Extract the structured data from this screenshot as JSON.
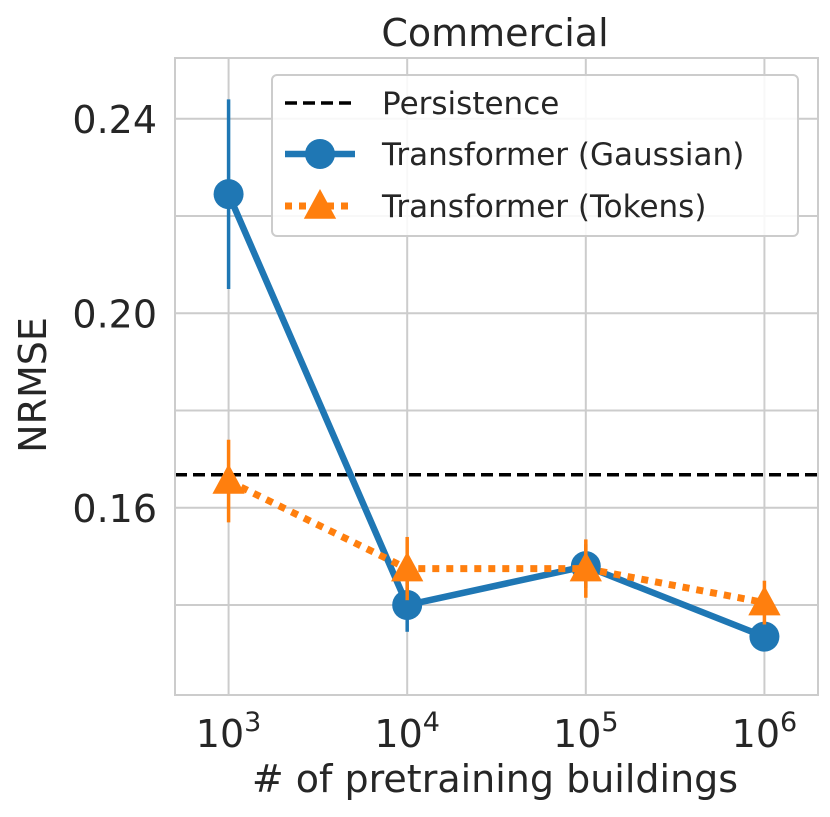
{
  "chart_data": {
    "type": "line",
    "title": "Commercial",
    "xlabel": "# of pretraining buildings",
    "ylabel": "NRMSE",
    "x_scale": "log10",
    "x_exponents": [
      3,
      4,
      5,
      6
    ],
    "x_tick_base": "10",
    "x_tick_exponents": [
      "3",
      "4",
      "5",
      "6"
    ],
    "y_ticks": [
      0.16,
      0.2,
      0.24
    ],
    "y_tick_labels": [
      "0.16",
      "0.20",
      "0.24"
    ],
    "y_minor_ticks": [
      0.14,
      0.18,
      0.22
    ],
    "xlim_exponent": [
      2.7,
      6.3
    ],
    "ylim": [
      0.1215,
      0.2525
    ],
    "grid": true,
    "legend_position": "top-right",
    "persistence": {
      "name": "Persistence",
      "value": 0.1668,
      "color": "#000000"
    },
    "series": [
      {
        "name": "Transformer (Gaussian)",
        "color": "#1f77b4",
        "marker": "circle",
        "style": "solid",
        "values": [
          0.2245,
          0.14,
          0.148,
          0.1335
        ],
        "error": [
          0.0195,
          0.0055,
          0.0045,
          0.003
        ]
      },
      {
        "name": "Transformer (Tokens)",
        "color": "#ff7f0e",
        "marker": "triangle",
        "style": "dotted",
        "values": [
          0.1655,
          0.1475,
          0.1475,
          0.1405
        ],
        "error": [
          0.0085,
          0.0065,
          0.006,
          0.0045
        ]
      }
    ]
  }
}
